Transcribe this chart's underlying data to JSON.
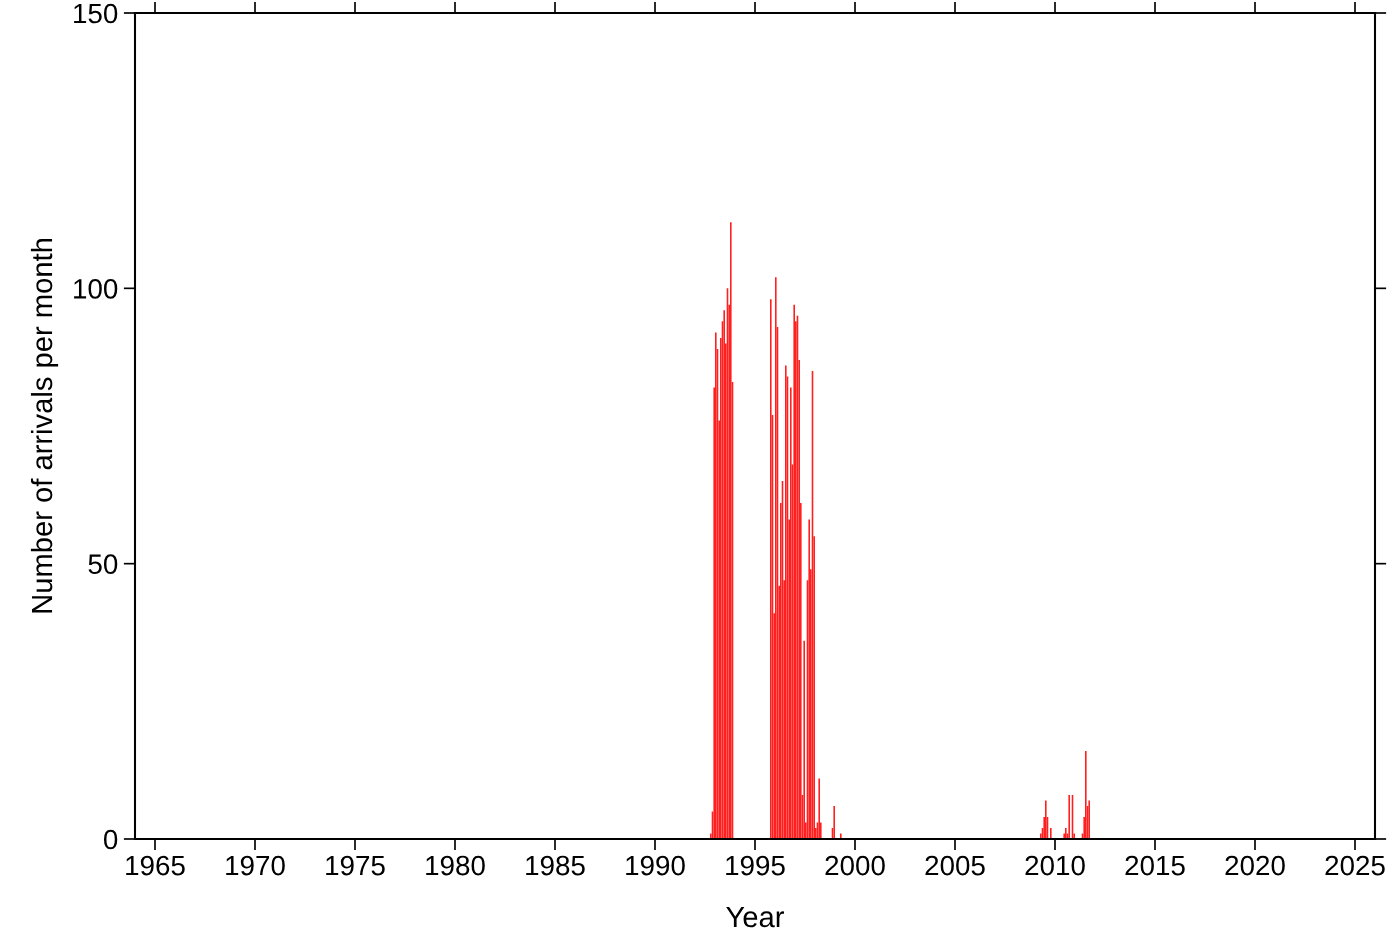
{
  "chart_data": {
    "type": "bar",
    "xlabel": "Year",
    "ylabel": "Number of arrivals per month",
    "x": [
      1992.79,
      1992.875,
      1992.96,
      1993.04,
      1993.125,
      1993.21,
      1993.29,
      1993.375,
      1993.46,
      1993.54,
      1993.625,
      1993.71,
      1993.79,
      1993.875,
      1995.79,
      1995.875,
      1995.96,
      1996.04,
      1996.125,
      1996.21,
      1996.29,
      1996.375,
      1996.46,
      1996.54,
      1996.625,
      1996.71,
      1996.79,
      1996.875,
      1996.96,
      1997.04,
      1997.125,
      1997.21,
      1997.29,
      1997.375,
      1997.46,
      1997.54,
      1997.625,
      1997.71,
      1997.79,
      1997.875,
      1997.96,
      1998.04,
      1998.125,
      1998.21,
      1998.29,
      1998.875,
      1998.96,
      1999.29,
      2009.29,
      2009.375,
      2009.46,
      2009.54,
      2009.625,
      2009.79,
      2010.46,
      2010.54,
      2010.625,
      2010.71,
      2010.875,
      2010.96,
      2011.375,
      2011.46,
      2011.54,
      2011.625,
      2011.71
    ],
    "values": [
      1,
      5,
      82,
      92,
      89,
      76,
      91,
      94,
      96,
      90,
      100,
      97,
      112,
      83,
      98,
      77,
      41,
      102,
      93,
      46,
      61,
      65,
      47,
      86,
      84,
      58,
      82,
      68,
      97,
      94,
      95,
      87,
      61,
      8,
      36,
      3,
      47,
      58,
      49,
      85,
      55,
      2,
      3,
      11,
      3,
      2,
      6,
      1,
      1,
      2,
      4,
      7,
      4,
      2,
      1,
      2,
      1,
      8,
      8,
      1,
      1,
      4,
      16,
      6,
      7
    ],
    "color": "#ff1f1f",
    "xlim": [
      1964,
      2026
    ],
    "xticks": [
      1965,
      1970,
      1975,
      1980,
      1985,
      1990,
      1995,
      2000,
      2005,
      2010,
      2015,
      2020,
      2025
    ],
    "ylim": [
      0,
      150
    ],
    "yticks": [
      0,
      50,
      100,
      150
    ],
    "grid": false
  }
}
